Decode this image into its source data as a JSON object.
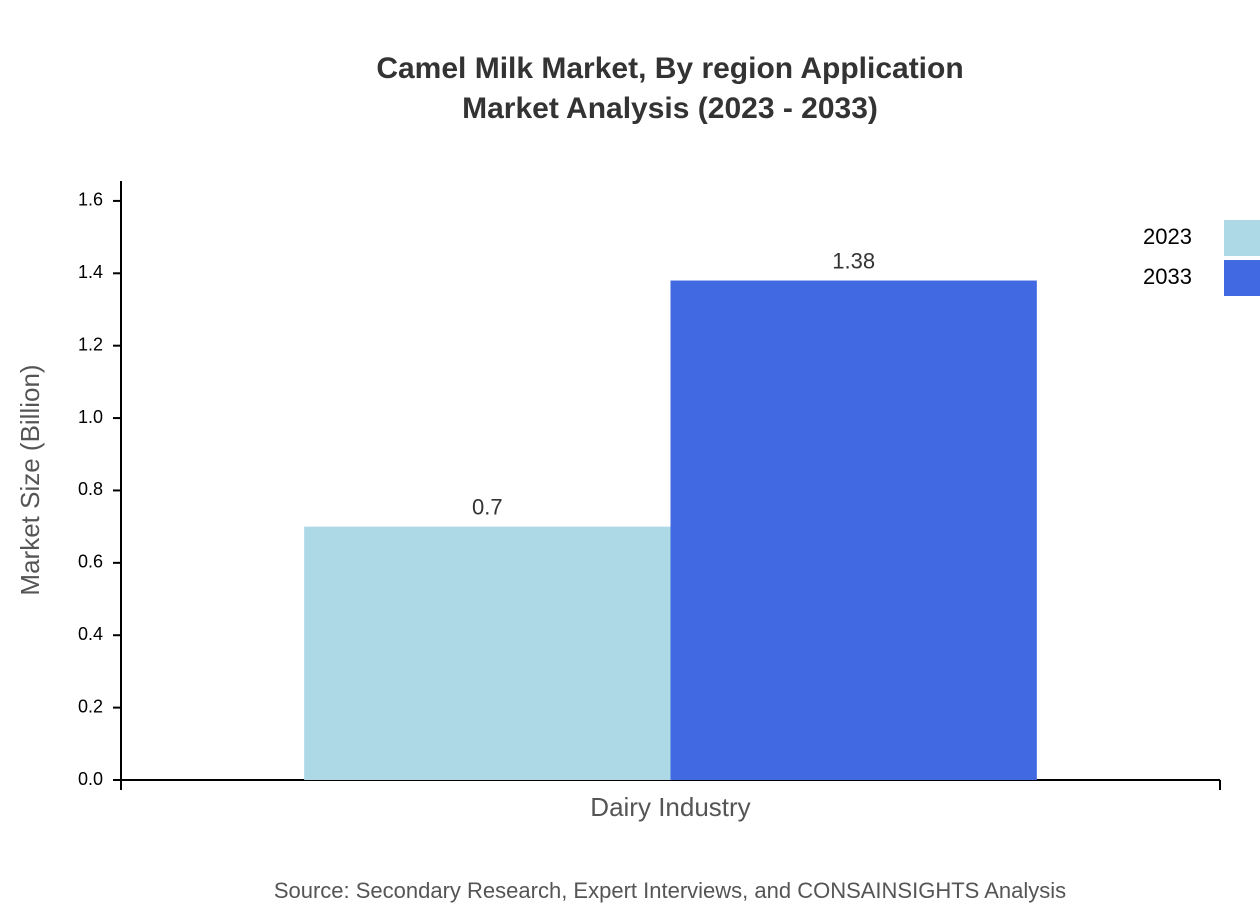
{
  "chart_data": {
    "type": "bar",
    "title": [
      "Camel Milk Market, By region Application",
      "Market Analysis (2023 - 2033)"
    ],
    "y_label": "Market Size (Billion)",
    "categories": [
      "Dairy Industry"
    ],
    "series": [
      {
        "name": "2023",
        "color": "#add8e6",
        "values": [
          0.7
        ]
      },
      {
        "name": "2033",
        "color": "#4169e1",
        "values": [
          1.38
        ]
      }
    ],
    "ylim": [
      0,
      1.655
    ],
    "yticks": [
      {
        "value": 0,
        "label": "0.0"
      },
      0.2,
      0.4,
      0.6,
      0.8,
      {
        "value": 1,
        "label": "1.0"
      },
      1.2,
      1.4,
      1.6
    ],
    "legend": "top-right",
    "source": "Source: Secondary Research, Expert Interviews, and CONSAINSIGHTS Analysis"
  }
}
